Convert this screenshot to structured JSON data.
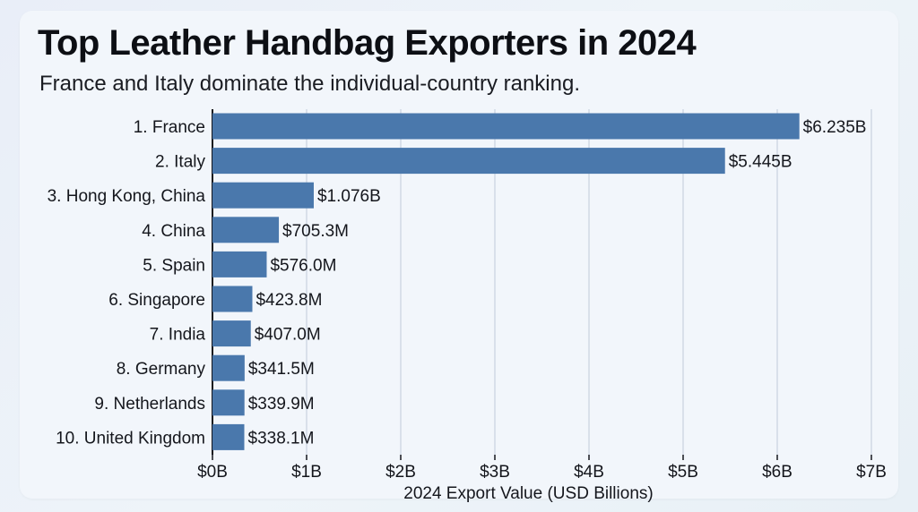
{
  "title": "Top Leather Handbag Exporters in 2024",
  "subtitle": "France and Italy dominate the individual-country ranking.",
  "colors": {
    "bar": "#4a78ac",
    "grid": "#c9d2de",
    "axis": "#14161c"
  },
  "chart_data": {
    "type": "bar",
    "orientation": "horizontal",
    "categories": [
      "1. France",
      "2. Italy",
      "3. Hong Kong, China",
      "4. China",
      "5. Spain",
      "6. Singapore",
      "7. India",
      "8. Germany",
      "9. Netherlands",
      "10. United Kingdom"
    ],
    "values": [
      6.235,
      5.445,
      1.076,
      0.7053,
      0.576,
      0.4238,
      0.407,
      0.3415,
      0.3399,
      0.3381
    ],
    "value_labels": [
      "$6.235B",
      "$5.445B",
      "$1.076B",
      "$705.3M",
      "$576.0M",
      "$423.8M",
      "$407.0M",
      "$341.5M",
      "$339.9M",
      "$338.1M"
    ],
    "xlabel": "2024 Export Value (USD Billions)",
    "ylabel": "",
    "xlim": [
      0,
      7
    ],
    "xticks": [
      0,
      1,
      2,
      3,
      4,
      5,
      6,
      7
    ],
    "xtick_labels": [
      "$0B",
      "$1B",
      "$2B",
      "$3B",
      "$4B",
      "$5B",
      "$6B",
      "$7B"
    ],
    "grid": "vertical",
    "legend": "none"
  }
}
